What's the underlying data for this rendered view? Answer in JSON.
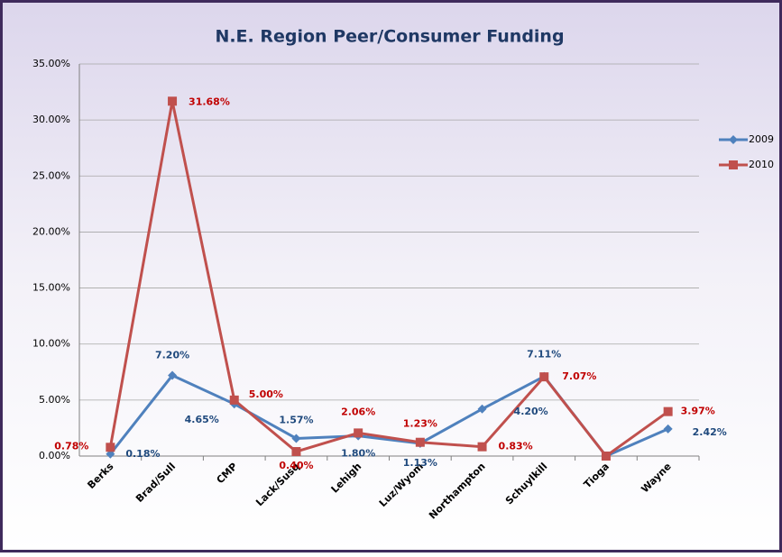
{
  "chart_data": {
    "type": "line",
    "title": "N.E. Region Peer/Consumer Funding",
    "categories": [
      "Berks",
      "Brad/Sull",
      "CMP",
      "Lack/Susq",
      "Lehigh",
      "Luz/Wyom",
      "Northampton",
      "Schuylkill",
      "Tioga",
      "Wayne"
    ],
    "series": [
      {
        "name": "2009",
        "color": "#4f81bd",
        "marker": "diamond",
        "label_color": "#1f497d",
        "values": [
          0.18,
          7.2,
          4.65,
          1.57,
          1.8,
          1.13,
          4.2,
          7.11,
          0,
          2.42
        ],
        "value_labels": [
          "0.18%",
          "7.20%",
          "4.65%",
          "1.57%",
          "1.80%",
          "1.13%",
          "4.20%",
          "7.11%",
          null,
          "2.42%"
        ]
      },
      {
        "name": "2010",
        "color": "#c0504d",
        "marker": "square",
        "label_color": "#c00000",
        "values": [
          0.78,
          31.68,
          5.0,
          0.4,
          2.06,
          1.23,
          0.83,
          7.07,
          0,
          3.97
        ],
        "value_labels": [
          "0.78%",
          "31.68%",
          "5.00%",
          "0.40%",
          "2.06%",
          "1.23%",
          "0.83%",
          "7.07%",
          null,
          "3.97%"
        ]
      }
    ],
    "ylim": [
      0,
      35
    ],
    "yticks": [
      {
        "value": 0,
        "label": "0.00%"
      },
      {
        "value": 5,
        "label": "5.00%"
      },
      {
        "value": 10,
        "label": "10.00%"
      },
      {
        "value": 15,
        "label": "15.00%"
      },
      {
        "value": 20,
        "label": "20.00%"
      },
      {
        "value": 25,
        "label": "25.00%"
      },
      {
        "value": 30,
        "label": "30.00%"
      },
      {
        "value": 35,
        "label": "35.00%"
      }
    ],
    "grid": true,
    "legend": "right"
  }
}
